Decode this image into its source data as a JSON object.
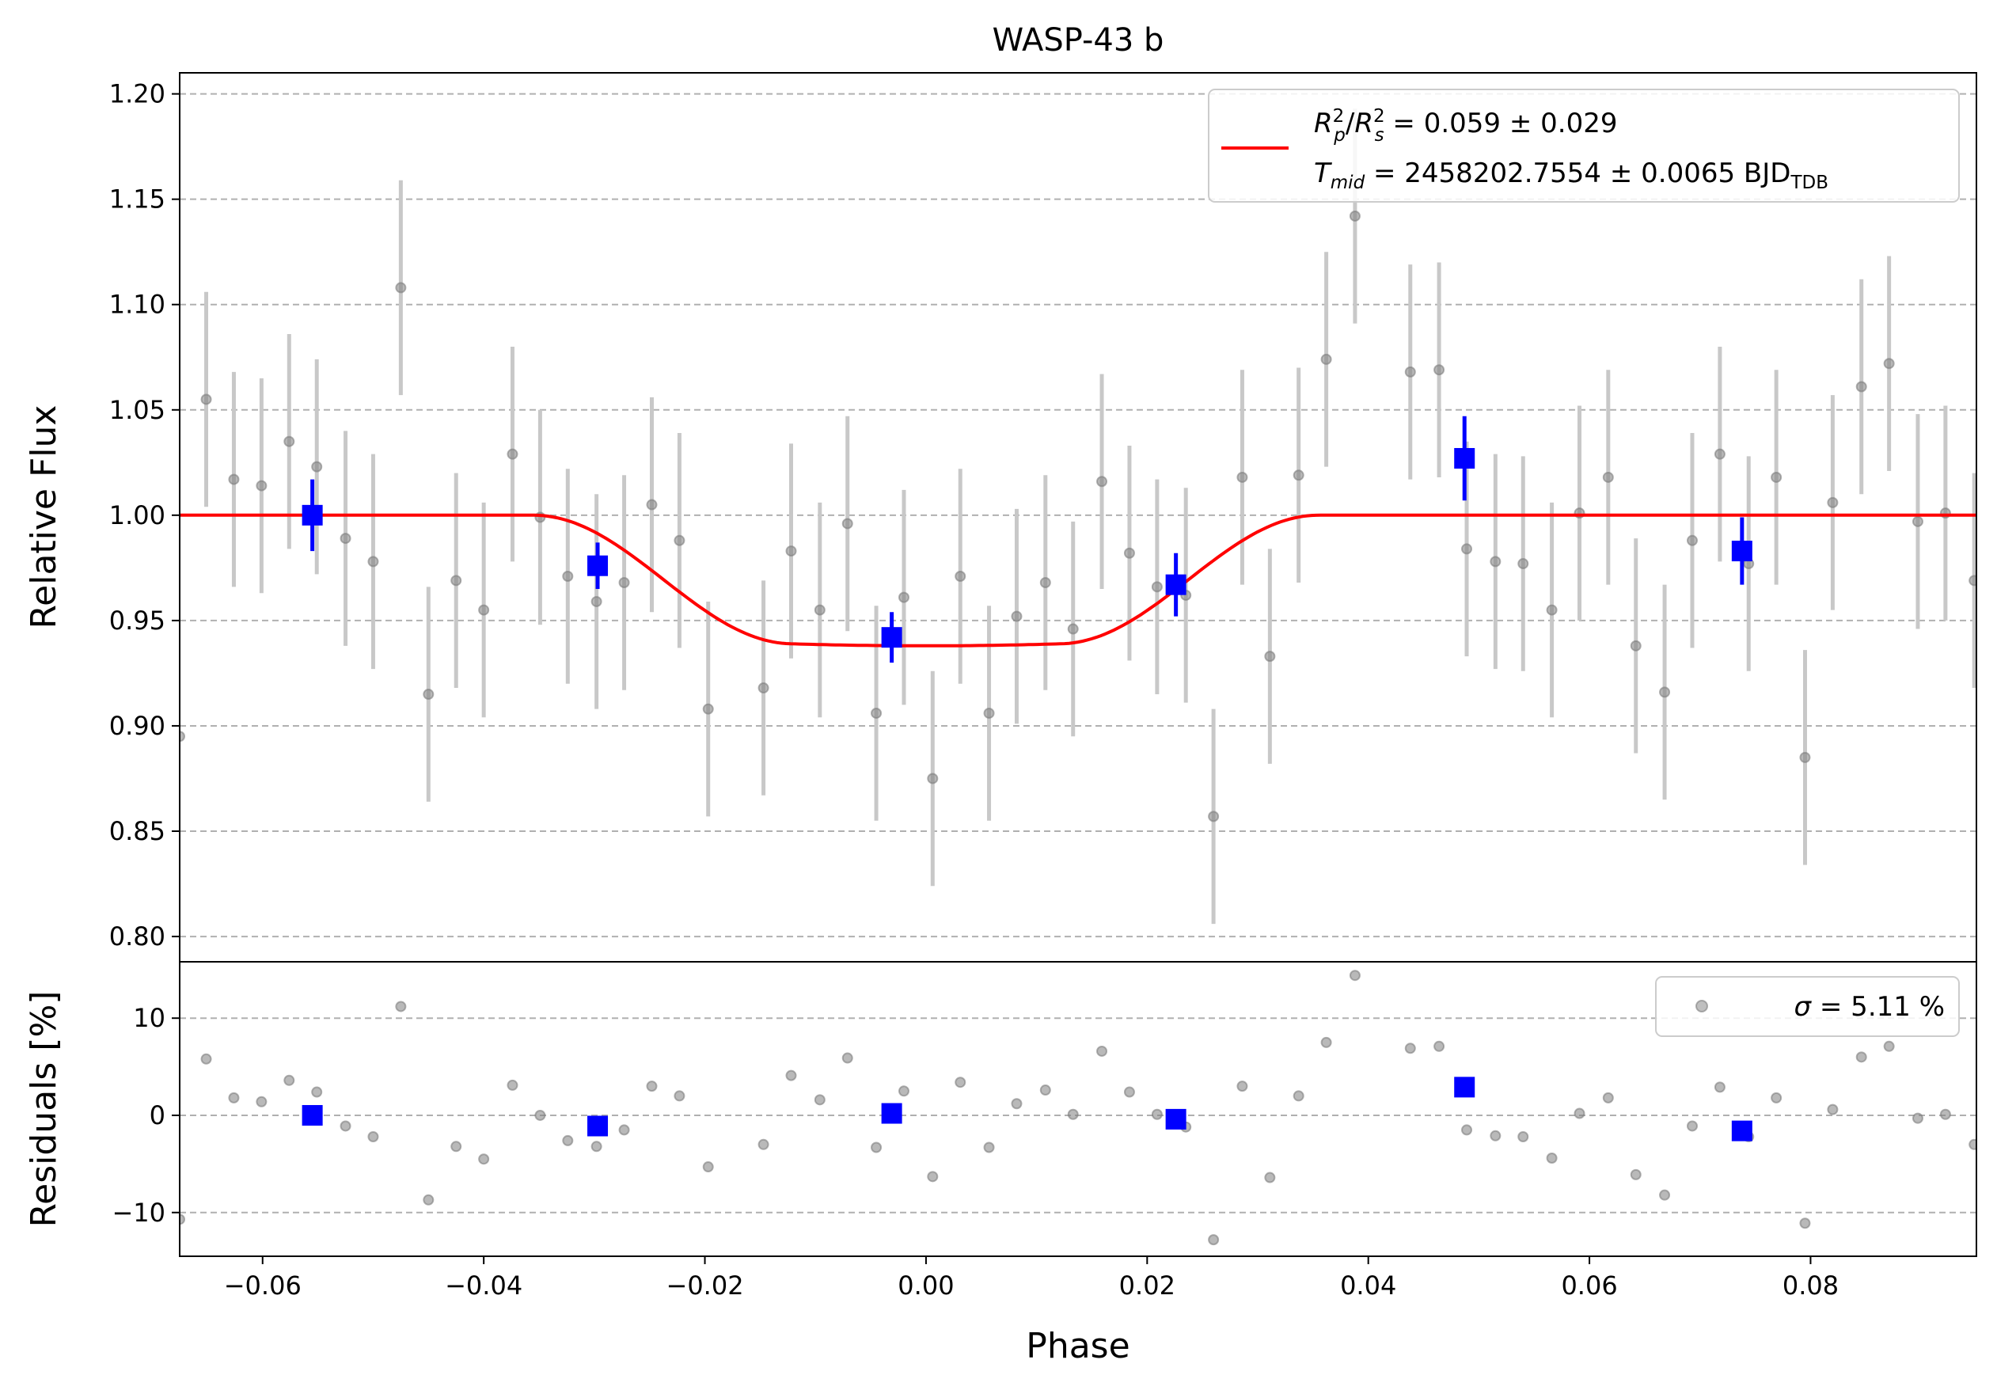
{
  "chart_data": {
    "type": "scatter",
    "title": "WASP-43 b",
    "xlabel": "Phase",
    "xlim": [
      -0.0675,
      0.095
    ],
    "x_ticks": [
      -0.06,
      -0.04,
      -0.02,
      0.0,
      0.02,
      0.04,
      0.06,
      0.08
    ],
    "x_tick_labels": [
      "−0.06",
      "−0.04",
      "−0.02",
      "0.00",
      "0.02",
      "0.04",
      "0.06",
      "0.08"
    ],
    "grid": "horizontal dashed",
    "colors": {
      "raw": "#7f7f7f",
      "raw_err": "#c8c8c8",
      "binned": "#0000ff",
      "model": "#ff0000"
    },
    "flux_panel": {
      "ylabel": "Relative Flux",
      "ylim": [
        0.788,
        1.21
      ],
      "y_ticks": [
        0.8,
        0.85,
        0.9,
        0.95,
        1.0,
        1.05,
        1.1,
        1.15,
        1.2
      ],
      "y_tick_labels": [
        "0.80",
        "0.85",
        "0.90",
        "0.95",
        "1.00",
        "1.05",
        "1.10",
        "1.15",
        "1.20"
      ],
      "legend": {
        "placement": "top-right",
        "line1_a": "R",
        "line1_a_sup": "2",
        "line1_a_sub": "p",
        "line1_b": "R",
        "line1_b_sup": "2",
        "line1_b_sub": "s",
        "line1_value": " = 0.059 ± 0.029",
        "line2_var": "T",
        "line2_var_sub": "mid",
        "line2_value": " = 2458202.7554 ± 0.0065 BJD",
        "line2_unit_sub": "TDB"
      },
      "model": {
        "baseline": 1.0,
        "min_flux": 0.938,
        "ingress_start": -0.0355,
        "flat_start": -0.012,
        "flat_end": 0.012,
        "egress_end": 0.0355
      },
      "raw_points": [
        {
          "x": -0.0675,
          "y": 0.895,
          "err": 0
        },
        {
          "x": -0.0651,
          "y": 1.055,
          "err": 0.051
        },
        {
          "x": -0.0626,
          "y": 1.017,
          "err": 0.051
        },
        {
          "x": -0.0601,
          "y": 1.014,
          "err": 0.051
        },
        {
          "x": -0.0576,
          "y": 1.035,
          "err": 0.051
        },
        {
          "x": -0.0551,
          "y": 1.023,
          "err": 0.051
        },
        {
          "x": -0.0525,
          "y": 0.989,
          "err": 0.051
        },
        {
          "x": -0.05,
          "y": 0.978,
          "err": 0.051
        },
        {
          "x": -0.0475,
          "y": 1.108,
          "err": 0.051
        },
        {
          "x": -0.045,
          "y": 0.915,
          "err": 0.051
        },
        {
          "x": -0.0425,
          "y": 0.969,
          "err": 0.051
        },
        {
          "x": -0.04,
          "y": 0.955,
          "err": 0.051
        },
        {
          "x": -0.0374,
          "y": 1.029,
          "err": 0.051
        },
        {
          "x": -0.0349,
          "y": 0.999,
          "err": 0.051
        },
        {
          "x": -0.0324,
          "y": 0.971,
          "err": 0.051
        },
        {
          "x": -0.0298,
          "y": 0.959,
          "err": 0.051
        },
        {
          "x": -0.0273,
          "y": 0.968,
          "err": 0.051
        },
        {
          "x": -0.0248,
          "y": 1.005,
          "err": 0.051
        },
        {
          "x": -0.0223,
          "y": 0.988,
          "err": 0.051
        },
        {
          "x": -0.0197,
          "y": 0.908,
          "err": 0.051
        },
        {
          "x": -0.0147,
          "y": 0.918,
          "err": 0.051
        },
        {
          "x": -0.0122,
          "y": 0.983,
          "err": 0.051
        },
        {
          "x": -0.0096,
          "y": 0.955,
          "err": 0.051
        },
        {
          "x": -0.0071,
          "y": 0.996,
          "err": 0.051
        },
        {
          "x": -0.0045,
          "y": 0.906,
          "err": 0.051
        },
        {
          "x": -0.002,
          "y": 0.961,
          "err": 0.051
        },
        {
          "x": 0.0006,
          "y": 0.875,
          "err": 0.051
        },
        {
          "x": 0.0031,
          "y": 0.971,
          "err": 0.051
        },
        {
          "x": 0.0057,
          "y": 0.906,
          "err": 0.051
        },
        {
          "x": 0.0082,
          "y": 0.952,
          "err": 0.051
        },
        {
          "x": 0.0108,
          "y": 0.968,
          "err": 0.051
        },
        {
          "x": 0.0133,
          "y": 0.946,
          "err": 0.051
        },
        {
          "x": 0.0159,
          "y": 1.016,
          "err": 0.051
        },
        {
          "x": 0.0184,
          "y": 0.982,
          "err": 0.051
        },
        {
          "x": 0.0209,
          "y": 0.966,
          "err": 0.051
        },
        {
          "x": 0.0235,
          "y": 0.962,
          "err": 0.051
        },
        {
          "x": 0.026,
          "y": 0.857,
          "err": 0.051
        },
        {
          "x": 0.0286,
          "y": 1.018,
          "err": 0.051
        },
        {
          "x": 0.0311,
          "y": 0.933,
          "err": 0.051
        },
        {
          "x": 0.0337,
          "y": 1.019,
          "err": 0.051
        },
        {
          "x": 0.0362,
          "y": 1.074,
          "err": 0.051
        },
        {
          "x": 0.0388,
          "y": 1.142,
          "err": 0.051
        },
        {
          "x": 0.0438,
          "y": 1.068,
          "err": 0.051
        },
        {
          "x": 0.0464,
          "y": 1.069,
          "err": 0.051
        },
        {
          "x": 0.0489,
          "y": 0.984,
          "err": 0.051
        },
        {
          "x": 0.0515,
          "y": 0.978,
          "err": 0.051
        },
        {
          "x": 0.054,
          "y": 0.977,
          "err": 0.051
        },
        {
          "x": 0.0566,
          "y": 0.955,
          "err": 0.051
        },
        {
          "x": 0.0591,
          "y": 1.001,
          "err": 0.051
        },
        {
          "x": 0.0617,
          "y": 1.018,
          "err": 0.051
        },
        {
          "x": 0.0642,
          "y": 0.938,
          "err": 0.051
        },
        {
          "x": 0.0668,
          "y": 0.916,
          "err": 0.051
        },
        {
          "x": 0.0693,
          "y": 0.988,
          "err": 0.051
        },
        {
          "x": 0.0718,
          "y": 1.029,
          "err": 0.051
        },
        {
          "x": 0.0744,
          "y": 0.977,
          "err": 0.051
        },
        {
          "x": 0.0769,
          "y": 1.018,
          "err": 0.051
        },
        {
          "x": 0.0795,
          "y": 0.885,
          "err": 0.051
        },
        {
          "x": 0.082,
          "y": 1.006,
          "err": 0.051
        },
        {
          "x": 0.0846,
          "y": 1.061,
          "err": 0.051
        },
        {
          "x": 0.0871,
          "y": 1.072,
          "err": 0.051
        },
        {
          "x": 0.0897,
          "y": 0.997,
          "err": 0.051
        },
        {
          "x": 0.0922,
          "y": 1.001,
          "err": 0.051
        },
        {
          "x": 0.0948,
          "y": 0.969,
          "err": 0.051
        }
      ],
      "binned_points": [
        {
          "x": -0.0555,
          "y": 1.0,
          "err": 0.017
        },
        {
          "x": -0.0297,
          "y": 0.976,
          "err": 0.011
        },
        {
          "x": -0.0031,
          "y": 0.942,
          "err": 0.012
        },
        {
          "x": 0.0226,
          "y": 0.967,
          "err": 0.015
        },
        {
          "x": 0.0487,
          "y": 1.027,
          "err": 0.02
        },
        {
          "x": 0.0738,
          "y": 0.983,
          "err": 0.016
        }
      ]
    },
    "residual_panel": {
      "ylabel": "Residuals [%]",
      "ylim": [
        -14.5,
        15.8
      ],
      "y_ticks": [
        -10,
        0,
        10
      ],
      "y_tick_labels": [
        "−10",
        "0",
        "10"
      ],
      "legend": {
        "placement": "top-right",
        "sigma_symbol": "σ",
        "sigma_value": " = 5.11 %"
      },
      "raw_points": [
        {
          "x": -0.0675,
          "y": -10.7
        },
        {
          "x": -0.0651,
          "y": 5.8
        },
        {
          "x": -0.0626,
          "y": 1.8
        },
        {
          "x": -0.0601,
          "y": 1.4
        },
        {
          "x": -0.0576,
          "y": 3.6
        },
        {
          "x": -0.0551,
          "y": 2.4
        },
        {
          "x": -0.0525,
          "y": -1.1
        },
        {
          "x": -0.05,
          "y": -2.2
        },
        {
          "x": -0.0475,
          "y": 11.2
        },
        {
          "x": -0.045,
          "y": -8.7
        },
        {
          "x": -0.0425,
          "y": -3.2
        },
        {
          "x": -0.04,
          "y": -4.5
        },
        {
          "x": -0.0374,
          "y": 3.1
        },
        {
          "x": -0.0349,
          "y": 0.0
        },
        {
          "x": -0.0324,
          "y": -2.6
        },
        {
          "x": -0.0298,
          "y": -3.2
        },
        {
          "x": -0.0273,
          "y": -1.5
        },
        {
          "x": -0.0248,
          "y": 3.0
        },
        {
          "x": -0.0223,
          "y": 2.0
        },
        {
          "x": -0.0197,
          "y": -5.3
        },
        {
          "x": -0.0147,
          "y": -3.0
        },
        {
          "x": -0.0122,
          "y": 4.1
        },
        {
          "x": -0.0096,
          "y": 1.6
        },
        {
          "x": -0.0071,
          "y": 5.9
        },
        {
          "x": -0.0045,
          "y": -3.3
        },
        {
          "x": -0.002,
          "y": 2.5
        },
        {
          "x": 0.0006,
          "y": -6.3
        },
        {
          "x": 0.0031,
          "y": 3.4
        },
        {
          "x": 0.0057,
          "y": -3.3
        },
        {
          "x": 0.0082,
          "y": 1.2
        },
        {
          "x": 0.0108,
          "y": 2.6
        },
        {
          "x": 0.0133,
          "y": 0.1
        },
        {
          "x": 0.0159,
          "y": 6.6
        },
        {
          "x": 0.0184,
          "y": 2.4
        },
        {
          "x": 0.0209,
          "y": 0.1
        },
        {
          "x": 0.0235,
          "y": -1.2
        },
        {
          "x": 0.026,
          "y": -12.8
        },
        {
          "x": 0.0286,
          "y": 3.0
        },
        {
          "x": 0.0311,
          "y": -6.4
        },
        {
          "x": 0.0337,
          "y": 2.0
        },
        {
          "x": 0.0362,
          "y": 7.5
        },
        {
          "x": 0.0388,
          "y": 14.4
        },
        {
          "x": 0.0438,
          "y": 6.9
        },
        {
          "x": 0.0464,
          "y": 7.1
        },
        {
          "x": 0.0489,
          "y": -1.5
        },
        {
          "x": 0.0515,
          "y": -2.1
        },
        {
          "x": 0.054,
          "y": -2.2
        },
        {
          "x": 0.0566,
          "y": -4.4
        },
        {
          "x": 0.0591,
          "y": 0.2
        },
        {
          "x": 0.0617,
          "y": 1.8
        },
        {
          "x": 0.0642,
          "y": -6.1
        },
        {
          "x": 0.0668,
          "y": -8.2
        },
        {
          "x": 0.0693,
          "y": -1.1
        },
        {
          "x": 0.0718,
          "y": 2.9
        },
        {
          "x": 0.0744,
          "y": -2.2
        },
        {
          "x": 0.0769,
          "y": 1.8
        },
        {
          "x": 0.0795,
          "y": -11.1
        },
        {
          "x": 0.082,
          "y": 0.6
        },
        {
          "x": 0.0846,
          "y": 6.0
        },
        {
          "x": 0.0871,
          "y": 7.1
        },
        {
          "x": 0.0897,
          "y": -0.3
        },
        {
          "x": 0.0922,
          "y": 0.1
        },
        {
          "x": 0.0948,
          "y": -3.0
        }
      ],
      "binned_points": [
        {
          "x": -0.0555,
          "y": 0.0
        },
        {
          "x": -0.0297,
          "y": -1.1
        },
        {
          "x": -0.0031,
          "y": 0.2
        },
        {
          "x": 0.0226,
          "y": -0.4
        },
        {
          "x": 0.0487,
          "y": 2.9
        },
        {
          "x": 0.0738,
          "y": -1.6
        }
      ]
    }
  }
}
